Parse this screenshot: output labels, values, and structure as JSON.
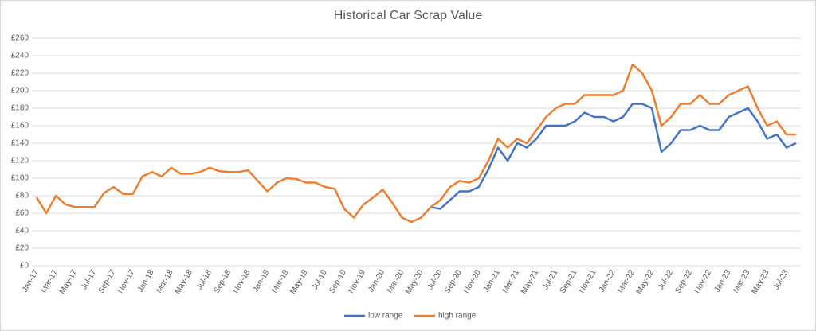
{
  "chart_data": {
    "type": "line",
    "title": "Historical Car Scrap Value",
    "categories": [
      "Jan-17",
      null,
      "Mar-17",
      null,
      "May-17",
      null,
      "Jul-17",
      null,
      "Sep-17",
      null,
      "Nov-17",
      null,
      "Jan-18",
      null,
      "Mar-18",
      null,
      "May-18",
      null,
      "Jul-18",
      null,
      "Sep-18",
      null,
      "Nov-18",
      null,
      "Jan-19",
      null,
      "Mar-19",
      null,
      "May-19",
      null,
      "Jul-19",
      null,
      "Sep-19",
      null,
      "Nov-19",
      null,
      "Jan-20",
      null,
      "Mar-20",
      null,
      "May-20",
      null,
      "Jul-20",
      null,
      "Sep-20",
      null,
      "Nov-20",
      null,
      "Jan-21",
      null,
      "Mar-21",
      null,
      "May-21",
      null,
      "Jul-21",
      null,
      "Sep-21",
      null,
      "Nov-21",
      null,
      "Jan-22",
      null,
      "Mar-22",
      null,
      "May-22",
      null,
      "Jul-22",
      null,
      "Sep-22",
      null,
      "Nov-22",
      null,
      "Jan-23",
      null,
      "Mar-23",
      null,
      "May-23",
      null,
      "Jul-23",
      null
    ],
    "series": [
      {
        "name": "low range",
        "color": "#4472c4",
        "values": [
          null,
          null,
          null,
          null,
          null,
          null,
          null,
          null,
          null,
          null,
          null,
          null,
          null,
          null,
          null,
          null,
          null,
          null,
          null,
          null,
          null,
          null,
          null,
          null,
          null,
          null,
          null,
          null,
          null,
          null,
          null,
          null,
          null,
          null,
          null,
          null,
          null,
          null,
          null,
          null,
          null,
          67,
          65,
          75,
          85,
          85,
          90,
          110,
          135,
          120,
          140,
          135,
          145,
          160,
          160,
          160,
          165,
          175,
          170,
          170,
          165,
          170,
          185,
          185,
          180,
          130,
          140,
          155,
          155,
          160,
          155,
          155,
          170,
          175,
          180,
          165,
          145,
          150,
          135,
          140
        ]
      },
      {
        "name": "high range",
        "color": "#ed7d31",
        "values": [
          78,
          60,
          80,
          70,
          67,
          67,
          67,
          83,
          90,
          82,
          82,
          102,
          107,
          102,
          112,
          105,
          105,
          107,
          112,
          108,
          107,
          107,
          109,
          97,
          85,
          95,
          100,
          99,
          95,
          95,
          90,
          88,
          65,
          55,
          70,
          78,
          87,
          72,
          55,
          50,
          55,
          67,
          75,
          90,
          97,
          95,
          100,
          120,
          145,
          135,
          145,
          140,
          155,
          170,
          180,
          185,
          185,
          195,
          195,
          195,
          195,
          200,
          230,
          220,
          200,
          160,
          170,
          185,
          185,
          195,
          185,
          185,
          195,
          200,
          205,
          180,
          160,
          165,
          150,
          150
        ]
      }
    ],
    "ylim": [
      0,
      260
    ],
    "yticks": [
      {
        "value": 0,
        "label": "£0"
      },
      {
        "value": 20,
        "label": "£20"
      },
      {
        "value": 40,
        "label": "£40"
      },
      {
        "value": 60,
        "label": "£60"
      },
      {
        "value": 80,
        "label": "£80"
      },
      {
        "value": 100,
        "label": "£100"
      },
      {
        "value": 120,
        "label": "£120"
      },
      {
        "value": 140,
        "label": "£140"
      },
      {
        "value": 160,
        "label": "£160"
      },
      {
        "value": 180,
        "label": "£180"
      },
      {
        "value": 200,
        "label": "£200"
      },
      {
        "value": 220,
        "label": "£220"
      },
      {
        "value": 240,
        "label": "£240"
      },
      {
        "value": 260,
        "label": "£260"
      }
    ],
    "grid": true,
    "legend": "bottom"
  }
}
